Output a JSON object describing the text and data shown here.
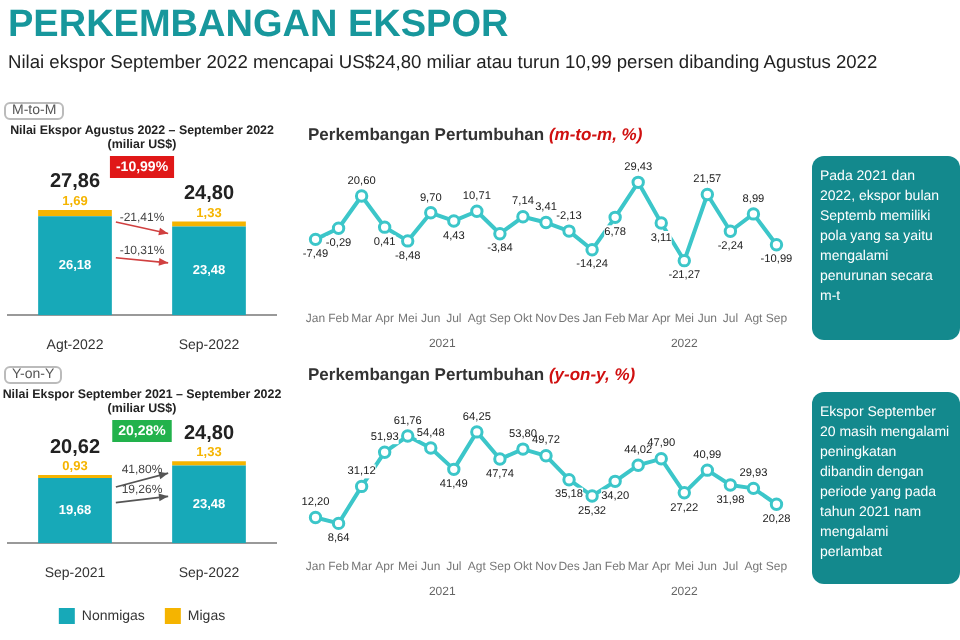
{
  "chart_data": [
    {
      "type": "bar",
      "title": "PERKEMBANGAN EKSPOR",
      "subtitle": "Nilai ekspor September 2022 mencapai US$24,80 miliar atau turun 10,99 persen dibanding Agustus 2022",
      "categories": [
        "Agt-2022",
        "Sep-2022"
      ],
      "stacked": true,
      "series": [
        {
          "color": "#17a9b8",
          "values": [
            26.18,
            23.48
          ],
          "value_labels": [
            "26,18",
            "23,48"
          ]
        },
        {
          "color": "#f5b400",
          "values": [
            1.69,
            1.33
          ],
          "value_labels": [
            "1,69",
            "1,33"
          ]
        }
      ],
      "totals": [
        "27,86",
        "24,80"
      ],
      "legend": false,
      "annotations": [
        "M-to-M",
        "Nilai Ekspor Agustus 2022 – September 2022",
        "(miliar US$)",
        "-10,99%",
        "-21,41%",
        "-10,31%"
      ]
    },
    {
      "type": "line",
      "title": "Perkembangan Pertumbuhan",
      "subtitle": "(m-to-m, %)",
      "categories": [
        "Jan",
        "Feb",
        "Mar",
        "Apr",
        "Mei",
        "Jun",
        "Jul",
        "Agt",
        "Sep",
        "Okt",
        "Nov",
        "Des",
        "Jan",
        "Feb",
        "Mar",
        "Apr",
        "Mei",
        "Jun",
        "Jul",
        "Agt",
        "Sep"
      ],
      "series": [
        {
          "color": "#3cc6c9",
          "values": [
            -7.49,
            -0.29,
            20.6,
            0.41,
            -8.48,
            9.7,
            4.43,
            10.71,
            -3.84,
            7.14,
            3.41,
            -2.13,
            -14.24,
            6.78,
            29.43,
            3.11,
            -21.27,
            21.57,
            -2.24,
            8.99,
            -10.99
          ],
          "value_labels": [
            "-7,49",
            "-0,29",
            "20,60",
            "0,41",
            "-8,48",
            "9,70",
            "4,43",
            "10,71",
            "-3,84",
            "7,14",
            "3,41",
            "-2,13",
            "-14,24",
            "6,78",
            "29,43",
            "3,11",
            "-21,27",
            "21,57",
            "-2,24",
            "8,99",
            "-10,99"
          ]
        }
      ],
      "marker": "circle",
      "tick_labels": "x",
      "grid": false,
      "legend": false,
      "annotations": [
        "2021",
        "2022"
      ]
    },
    {
      "type": "line",
      "title": "Perkembangan Pertumbuhan",
      "subtitle": "(y-on-y, %)",
      "categories": [
        "Jan",
        "Feb",
        "Mar",
        "Apr",
        "Mei",
        "Jun",
        "Jul",
        "Agt",
        "Sep",
        "Okt",
        "Nov",
        "Des",
        "Jan",
        "Feb",
        "Mar",
        "Apr",
        "Mei",
        "Jun",
        "Jul",
        "Agt",
        "Sep"
      ],
      "series": [
        {
          "color": "#3cc6c9",
          "values": [
            12.2,
            8.64,
            31.12,
            51.93,
            61.76,
            54.48,
            41.49,
            64.25,
            47.74,
            53.8,
            49.72,
            35.18,
            25.32,
            34.2,
            44.02,
            47.9,
            27.22,
            40.99,
            31.98,
            29.93,
            20.28
          ],
          "value_labels": [
            "12,20",
            "8,64",
            "31,12",
            "51,93",
            "61,76",
            "54,48",
            "41,49",
            "64,25",
            "47,74",
            "53,80",
            "49,72",
            "35,18",
            "25,32",
            "34,20",
            "44,02",
            "47,90",
            "27,22",
            "40,99",
            "31,98",
            "29,93",
            "20,28"
          ]
        }
      ],
      "marker": "circle",
      "tick_labels": "x",
      "grid": false,
      "legend": false,
      "annotations": [
        "2021",
        "2022"
      ]
    },
    {
      "type": "bar",
      "categories": [
        "Sep-2021",
        "Sep-2022"
      ],
      "stacked": true,
      "series": [
        {
          "name": "Nonmigas",
          "color": "#17a9b8",
          "values": [
            19.68,
            23.48
          ],
          "value_labels": [
            "19,68",
            "23,48"
          ]
        },
        {
          "name": "Migas",
          "color": "#f5b400",
          "values": [
            0.93,
            1.33
          ],
          "value_labels": [
            "0,93",
            "1,33"
          ]
        }
      ],
      "totals": [
        "20,62",
        "24,80"
      ],
      "legend": "bottom",
      "annotations": [
        "Y-on-Y",
        "Nilai Ekspor September 2021 – September 2022",
        "(miliar US$)",
        "20,28%",
        "41,80%",
        "19,26%"
      ]
    },
    {
      "type": "other",
      "annotations": [
        "Pada 2021 dan 2022, ekspor bulan Septemb memiliki pola yang sa yaitu mengalami penurunan secara m-t"
      ]
    },
    {
      "type": "other",
      "annotations": [
        "Ekspor September 20 masih mengalami peningkatan dibandin dengan periode yang pada tahun 2021 nam mengalami perlambat"
      ]
    }
  ]
}
